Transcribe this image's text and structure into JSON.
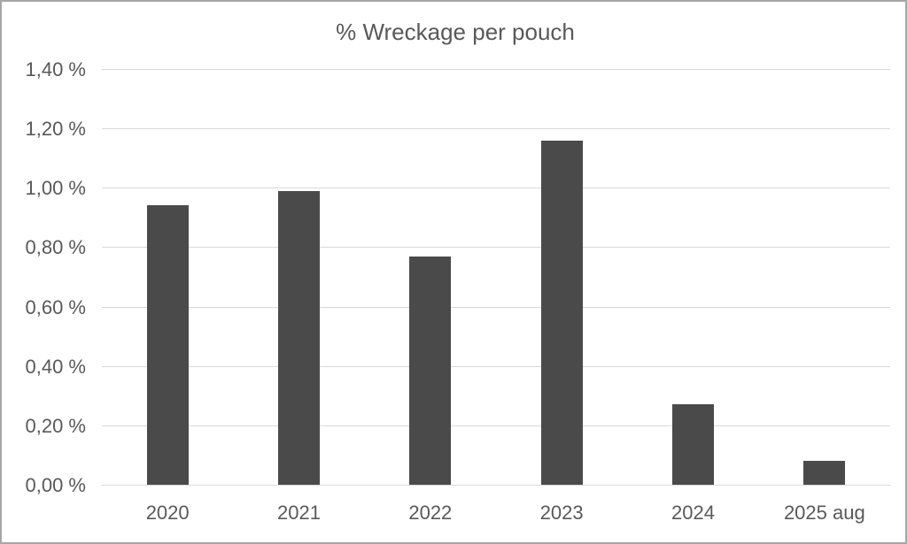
{
  "chart_data": {
    "type": "bar",
    "title": "% Wreckage per pouch",
    "categories": [
      "2020",
      "2021",
      "2022",
      "2023",
      "2024",
      "2025 aug"
    ],
    "values": [
      0.94,
      0.99,
      0.77,
      1.16,
      0.27,
      0.08
    ],
    "value_unit": "%",
    "decimal_separator": ",",
    "ylim": [
      0,
      1.4
    ],
    "ytick_step": 0.2,
    "ytick_labels": [
      "0,00 %",
      "0,20 %",
      "0,40 %",
      "0,60 %",
      "0,80 %",
      "1,00 %",
      "1,20 %",
      "1,40 %"
    ],
    "xlabel": "",
    "ylabel": "",
    "grid": "horizontal",
    "legend": "none",
    "colors": {
      "bar": "#4a4a4a",
      "gridline": "#d9d9d9",
      "text": "#595959",
      "background": "#ffffff",
      "frame_border": "#a6a6a6"
    }
  }
}
